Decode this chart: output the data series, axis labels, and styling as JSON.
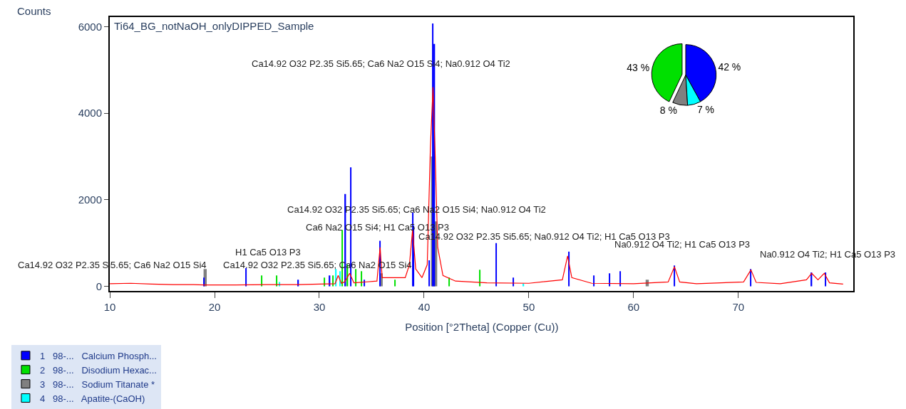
{
  "chart_data": [
    {
      "type": "line",
      "title": "Ti64_BG_notNaOH_onlyDIPPED_Sample",
      "xlabel": "Position [°2Theta] (Copper (Cu))",
      "ylabel": "Counts",
      "xlim": [
        10,
        81
      ],
      "xticks": [
        10,
        20,
        30,
        40,
        50,
        60,
        70
      ],
      "ylim": [
        -110,
        6220
      ],
      "yticks": [
        0,
        2000,
        4000,
        6000
      ],
      "series": [
        {
          "type": "line",
          "color": "#ff0000",
          "x": [
            10,
            12,
            14,
            16,
            18,
            19,
            22,
            25,
            28,
            30,
            31.5,
            31.8,
            32.1,
            32.4,
            32.9,
            33.3,
            35.5,
            35.8,
            36.0,
            38.2,
            38.6,
            38.9,
            39.2,
            39.8,
            40.3,
            40.6,
            40.85,
            41.05,
            41.3,
            41.8,
            43,
            46,
            50,
            53.2,
            53.7,
            54.1,
            56,
            60,
            63.3,
            63.9,
            64.4,
            66,
            70.5,
            71.2,
            71.7,
            74,
            76.5,
            77,
            77.6,
            78.2,
            78.7,
            80
          ],
          "values": [
            60,
            70,
            50,
            40,
            40,
            30,
            30,
            40,
            40,
            50,
            60,
            250,
            70,
            100,
            300,
            80,
            120,
            900,
            200,
            200,
            500,
            1300,
            400,
            200,
            500,
            3200,
            4600,
            3100,
            900,
            250,
            120,
            80,
            70,
            150,
            700,
            200,
            70,
            60,
            100,
            450,
            100,
            60,
            100,
            380,
            90,
            60,
            150,
            300,
            150,
            300,
            80,
            50
          ]
        },
        {
          "type": "bar",
          "color": "#808080",
          "x": [
            19.1,
            35.9,
            40.8,
            41.1,
            61.3
          ],
          "values": [
            400,
            300,
            3000,
            1500,
            150
          ]
        },
        {
          "type": "bar",
          "color": "#00ffff",
          "x": [
            26.2,
            31.6,
            32.0,
            49.5
          ],
          "values": [
            100,
            400,
            350,
            60
          ]
        },
        {
          "type": "bar",
          "color": "#00e000",
          "x": [
            24.5,
            25.9,
            30.5,
            31.3,
            32.2,
            32.7,
            33.5,
            34.0,
            37.2,
            42.4,
            45.3
          ],
          "values": [
            250,
            250,
            200,
            250,
            1300,
            500,
            400,
            350,
            150,
            200,
            380
          ]
        },
        {
          "type": "bar",
          "color": "#0000ff",
          "x": [
            19.0,
            23.0,
            28.0,
            31.0,
            32.5,
            33.0,
            34.3,
            35.8,
            38.9,
            39.0,
            40.5,
            40.85,
            41.0,
            46.9,
            48.5,
            53.8,
            56.2,
            57.7,
            58.7,
            63.9,
            71.2,
            77.0,
            78.3
          ],
          "values": [
            200,
            420,
            150,
            250,
            2130,
            2750,
            150,
            1050,
            1700,
            1400,
            600,
            6070,
            5600,
            1000,
            200,
            800,
            250,
            300,
            350,
            480,
            400,
            320,
            320
          ]
        }
      ],
      "annotations": [
        "Ca14.92 O32 P2.35 Si5.65; Ca6 Na2 O15 Si4; Na0.912 O4 Ti2",
        "Ca14.92 O32 P2.35 Si5.65; Ca6 Na2 O15 Si4; Na0.912 O4 Ti2",
        "Ca6 Na2 O15 Si4; H1 Ca5 O13 P3",
        "Ca14.92 O32 P2.35 Si5.65; Na0.912 O4 Ti2; H1 Ca5 O13 P3",
        "Na0.912 O4 Ti2; H1 Ca5 O13 P3",
        "Na0.912 O4 Ti2; H1 Ca5 O13 P3",
        "Ca14.92 O32 P2.35 Si5.65; Ca6 Na2 O15 Si4",
        "H1 Ca5 O13 P3",
        "Ca14.92 O32 P2.35 Si5.65; Ca6 Na2 O15 Si4"
      ]
    },
    {
      "type": "pie",
      "categories": [
        "1   98-...   Calcium Phosph...",
        "2   98-...   Disodium Hexac...",
        "3   98-...   Sodium Titanate *",
        "4   98-...   Apatite-(CaOH)"
      ],
      "values": [
        42,
        43,
        8,
        7
      ],
      "colors": [
        "#0000ff",
        "#00e000",
        "#808080",
        "#00ffff"
      ],
      "value_labels": [
        "42 %",
        "43 %",
        "8 %",
        "7 %"
      ],
      "legend": "bottom left"
    }
  ]
}
